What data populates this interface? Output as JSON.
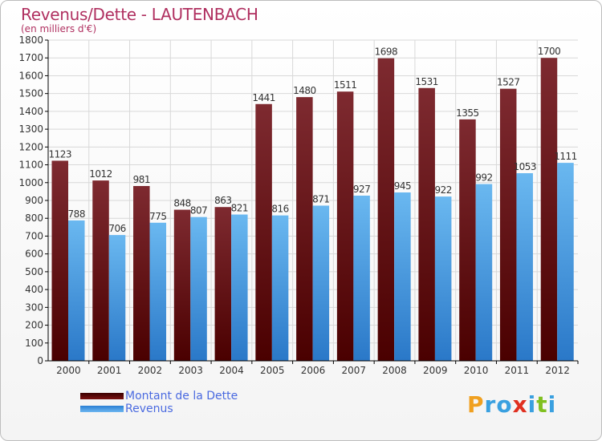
{
  "header": {
    "title": "Revenus/Dette - LAUTENBACH",
    "subtitle": "(en milliers d'€)"
  },
  "legend": {
    "debt_label": "Montant de la Dette",
    "revenue_label": "Revenus"
  },
  "logo": {
    "text": "Proxiti",
    "letters": [
      "P",
      "r",
      "o",
      "x",
      "i",
      "t",
      "i"
    ],
    "colors": [
      "#f0a020",
      "#3aa0e0",
      "#3aa0e0",
      "#e03020",
      "#3aa0e0",
      "#80c020",
      "#3aa0e0"
    ]
  },
  "colors": {
    "debt_top": "#7e2a30",
    "debt_bottom": "#4a0000",
    "revenue_top": "#6ab8f0",
    "revenue_bottom": "#2a78c8",
    "grid": "#d8d8d8",
    "axis": "#000000"
  },
  "chart_data": {
    "type": "bar",
    "title": "Revenus/Dette - LAUTENBACH",
    "ylabel": "(en milliers d'€)",
    "categories": [
      "2000",
      "2001",
      "2002",
      "2003",
      "2004",
      "2005",
      "2006",
      "2007",
      "2008",
      "2009",
      "2010",
      "2011",
      "2012"
    ],
    "series": [
      {
        "name": "Montant de la Dette",
        "values": [
          1123,
          1012,
          981,
          848,
          863,
          1441,
          1480,
          1511,
          1698,
          1531,
          1355,
          1527,
          1700
        ]
      },
      {
        "name": "Revenus",
        "values": [
          788,
          706,
          775,
          807,
          821,
          816,
          871,
          927,
          945,
          922,
          992,
          1053,
          1111
        ]
      }
    ],
    "ylim": [
      0,
      1800
    ],
    "ytick_step": 100,
    "grid": true,
    "legend_position": "bottom-left"
  }
}
